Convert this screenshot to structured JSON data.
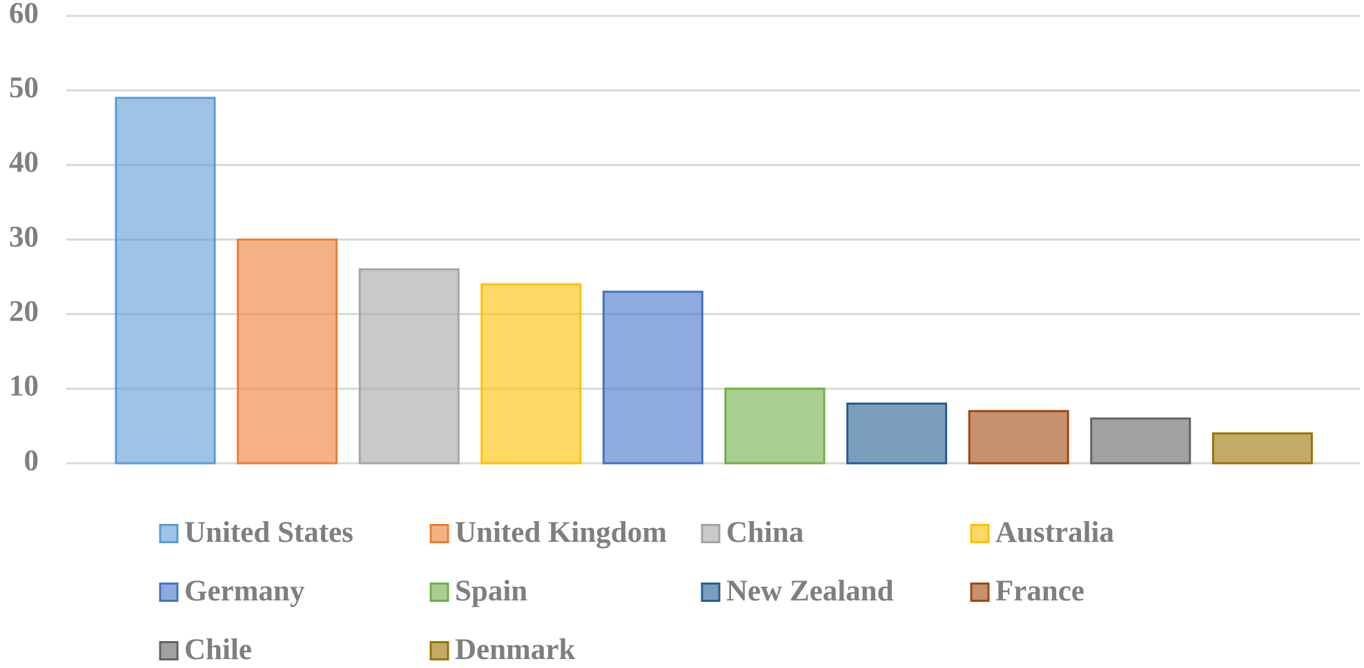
{
  "chart_data": {
    "type": "bar",
    "series": [
      {
        "name": "United States",
        "color": "#5b9bd5",
        "values": [
          49
        ]
      },
      {
        "name": "United Kingdom",
        "color": "#ed7d31",
        "values": [
          30
        ]
      },
      {
        "name": "China",
        "color": "#a5a5a5",
        "values": [
          26
        ]
      },
      {
        "name": "Australia",
        "color": "#ffc000",
        "values": [
          24
        ]
      },
      {
        "name": "Germany",
        "color": "#4472c4",
        "values": [
          23
        ]
      },
      {
        "name": "Spain",
        "color": "#70ad47",
        "values": [
          10
        ]
      },
      {
        "name": "New Zealand",
        "color": "#255e91",
        "values": [
          8
        ]
      },
      {
        "name": "France",
        "color": "#9e480e",
        "values": [
          7
        ]
      },
      {
        "name": "Chile",
        "color": "#636363",
        "values": [
          6
        ]
      },
      {
        "name": "Denmark",
        "color": "#997300",
        "values": [
          4
        ]
      }
    ],
    "ylim": [
      0,
      60
    ],
    "yticks": [
      0,
      10,
      20,
      30,
      40,
      50,
      60
    ],
    "grid": true,
    "legend": "bottom"
  }
}
